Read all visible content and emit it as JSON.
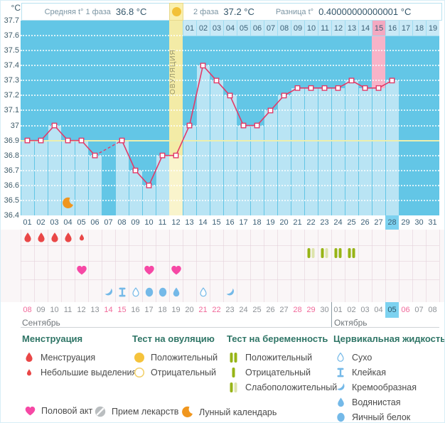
{
  "header": {
    "unit": "°C",
    "phase1_label": "Средняя t° 1 фаза",
    "phase1_value": "36.8 °C",
    "phase2_label": "2 фаза",
    "phase2_value": "37.2 °C",
    "diff_label": "Разница t°",
    "diff_value": "0.40000000000001 °C"
  },
  "chart_data": {
    "type": "line",
    "ylabel": "°C",
    "ylim": [
      36.4,
      37.7
    ],
    "ytick_step": 0.1,
    "grid": true,
    "coverline": 36.9,
    "cycle_days": [
      "01",
      "02",
      "03",
      "04",
      "05",
      "06",
      "07",
      "08",
      "09",
      "10",
      "11",
      "12",
      "13",
      "14",
      "15",
      "16",
      "17",
      "18",
      "19",
      "20",
      "21",
      "22",
      "23",
      "24",
      "25",
      "26",
      "27",
      "28",
      "29",
      "30",
      "31"
    ],
    "temps": [
      36.9,
      36.9,
      37.0,
      36.9,
      36.9,
      36.8,
      null,
      36.9,
      36.7,
      36.6,
      36.8,
      36.8,
      37.0,
      37.4,
      37.3,
      37.2,
      37.0,
      37.0,
      37.1,
      37.2,
      37.25,
      37.25,
      37.25,
      37.25,
      37.3,
      37.25,
      37.25,
      37.3,
      null,
      null,
      null
    ],
    "missing_days": [
      7,
      29,
      30,
      31
    ],
    "ovulation_day": 12,
    "ovulation_label": "ОВУЛЯЦИЯ",
    "dpo_start_day": 13,
    "dpo_labels": [
      "01",
      "02",
      "03",
      "04",
      "05",
      "06",
      "07",
      "08",
      "09",
      "10",
      "11",
      "12",
      "13",
      "14",
      "15",
      "16",
      "17",
      "18",
      "19"
    ],
    "dpo_highlighted": "15",
    "today_cycle_day": 28,
    "moon_day": 4,
    "menstruation": [
      {
        "day": 1,
        "size": "large"
      },
      {
        "day": 2,
        "size": "large"
      },
      {
        "day": 3,
        "size": "large"
      },
      {
        "day": 4,
        "size": "large"
      },
      {
        "day": 5,
        "size": "small"
      }
    ],
    "intercourse_days": [
      5,
      10,
      12
    ],
    "pregnancy_tests": [
      {
        "day": 22,
        "result": "weak-positive"
      },
      {
        "day": 23,
        "result": "weak-positive"
      },
      {
        "day": 24,
        "result": "positive"
      },
      {
        "day": 25,
        "result": "positive"
      }
    ],
    "cervical_fluid": [
      {
        "day": 7,
        "type": "creamy"
      },
      {
        "day": 8,
        "type": "sticky"
      },
      {
        "day": 9,
        "type": "dry"
      },
      {
        "day": 10,
        "type": "egg-white"
      },
      {
        "day": 11,
        "type": "egg-white"
      },
      {
        "day": 12,
        "type": "watery"
      },
      {
        "day": 14,
        "type": "dry"
      },
      {
        "day": 16,
        "type": "creamy"
      }
    ],
    "month1_label": "Сентябрь",
    "month1_days": 23,
    "month2_label": "Октябрь",
    "dates": [
      {
        "label": "08",
        "weekend": true
      },
      {
        "label": "09",
        "weekend": false
      },
      {
        "label": "10",
        "weekend": false
      },
      {
        "label": "11",
        "weekend": false
      },
      {
        "label": "12",
        "weekend": false
      },
      {
        "label": "13",
        "weekend": false
      },
      {
        "label": "14",
        "weekend": true
      },
      {
        "label": "15",
        "weekend": true
      },
      {
        "label": "16",
        "weekend": false
      },
      {
        "label": "17",
        "weekend": false
      },
      {
        "label": "18",
        "weekend": false
      },
      {
        "label": "19",
        "weekend": false
      },
      {
        "label": "20",
        "weekend": false
      },
      {
        "label": "21",
        "weekend": true
      },
      {
        "label": "22",
        "weekend": true
      },
      {
        "label": "23",
        "weekend": false
      },
      {
        "label": "24",
        "weekend": false
      },
      {
        "label": "25",
        "weekend": false
      },
      {
        "label": "26",
        "weekend": false
      },
      {
        "label": "27",
        "weekend": false
      },
      {
        "label": "28",
        "weekend": true
      },
      {
        "label": "29",
        "weekend": true
      },
      {
        "label": "30",
        "weekend": false
      },
      {
        "label": "01",
        "weekend": false
      },
      {
        "label": "02",
        "weekend": false
      },
      {
        "label": "03",
        "weekend": false
      },
      {
        "label": "04",
        "weekend": false
      },
      {
        "label": "05",
        "weekend": false,
        "today": true
      },
      {
        "label": "06",
        "weekend": true
      },
      {
        "label": "07",
        "weekend": false
      },
      {
        "label": "08",
        "weekend": false
      }
    ]
  },
  "legend": {
    "sections": [
      {
        "title": "Менструация",
        "items": [
          {
            "icon": "drop-large",
            "label": "Менструация"
          },
          {
            "icon": "drop-small",
            "label": "Небольшие выделения"
          }
        ]
      },
      {
        "title": "Тест на овуляцию",
        "items": [
          {
            "icon": "circle-filled",
            "label": "Положительный"
          },
          {
            "icon": "circle-outline",
            "label": "Отрицательный"
          }
        ]
      },
      {
        "title": "Тест на беременность",
        "items": [
          {
            "icon": "bars-positive",
            "label": "Положительный"
          },
          {
            "icon": "bar-negative",
            "label": "Отрицательный"
          },
          {
            "icon": "bars-weak",
            "label": "Слабоположительный"
          }
        ]
      },
      {
        "title": "Цервикальная жидкость",
        "items": [
          {
            "icon": "fluid-dry",
            "label": "Сухо"
          },
          {
            "icon": "fluid-sticky",
            "label": "Клейкая"
          },
          {
            "icon": "fluid-creamy",
            "label": "Кремообразная"
          },
          {
            "icon": "fluid-watery",
            "label": "Водянистая"
          },
          {
            "icon": "fluid-eggwhite",
            "label": "Яичный белок"
          }
        ]
      }
    ],
    "extra_items": [
      {
        "icon": "heart",
        "label": "Половой акт"
      },
      {
        "icon": "pill",
        "label": "Прием лекарств"
      },
      {
        "icon": "moon",
        "label": "Лунный календарь"
      }
    ]
  },
  "colors": {
    "chart_bg": "#63c6e6",
    "bar": "#b9e4f4",
    "ovulation_col": "#f3eba6",
    "ovulation_col_bar": "#f9f4cc",
    "pink_col": "#f8b3c8",
    "dpo_cell": "#c9e9f6",
    "dpo_cell_pink": "#f3a9c1",
    "line": "#e23a68",
    "coverline": "#ecefae",
    "today_bg": "#7dd2f0",
    "menses": "#e94747",
    "heart": "#f648a5",
    "cervical": "#74b9e8",
    "test_dark": "#97b416",
    "test_pale": "#dde4ab",
    "moon": "#f0961e",
    "weekend_date": "#f1699a",
    "date_text": "#8d9297",
    "day_text": "#3c6076"
  }
}
